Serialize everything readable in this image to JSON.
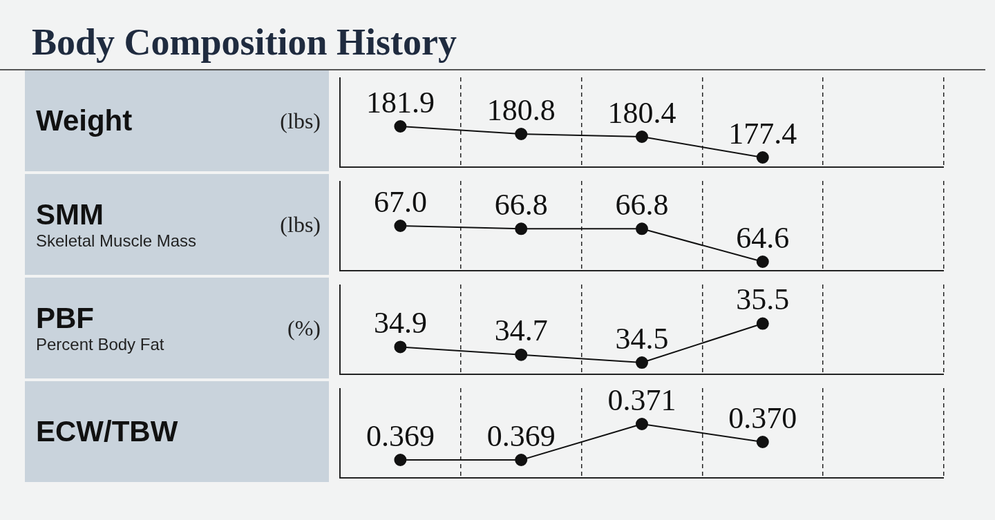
{
  "chart_data": [
    {
      "type": "line",
      "title": "Body Composition History",
      "ylabel": "Weight",
      "annotations": [
        "(lbs)"
      ],
      "categories": [
        null,
        null,
        null,
        null,
        null
      ],
      "ylim": [
        176,
        189
      ],
      "tick_labels": false,
      "grid": "x",
      "legend": false,
      "marker": "circle",
      "line_style": "solid",
      "series": [
        {
          "color": "#111111",
          "values": [
            181.9,
            180.8,
            180.4,
            177.4,
            null
          ],
          "value_labels": [
            "181.9",
            "180.8",
            "180.4",
            "177.4",
            null
          ]
        }
      ]
    },
    {
      "type": "line",
      "ylabel": "SMM",
      "annotations": [
        "Skeletal Muscle Mass",
        "(lbs)"
      ],
      "categories": [
        null,
        null,
        null,
        null,
        null
      ],
      "ylim": [
        64,
        70
      ],
      "tick_labels": false,
      "grid": "x",
      "legend": false,
      "marker": "circle",
      "line_style": "solid",
      "series": [
        {
          "color": "#111111",
          "values": [
            67.0,
            66.8,
            66.8,
            64.6,
            null
          ],
          "value_labels": [
            "67.0",
            "66.8",
            "66.8",
            "64.6",
            null
          ]
        }
      ]
    },
    {
      "type": "line",
      "ylabel": "PBF",
      "annotations": [
        "Percent Body Fat",
        "(%)"
      ],
      "categories": [
        null,
        null,
        null,
        null,
        null
      ],
      "ylim": [
        34.2,
        36.5
      ],
      "tick_labels": false,
      "grid": "x",
      "legend": false,
      "marker": "circle",
      "line_style": "solid",
      "series": [
        {
          "color": "#111111",
          "values": [
            34.9,
            34.7,
            34.5,
            35.5,
            null
          ],
          "value_labels": [
            "34.9",
            "34.7",
            "34.5",
            "35.5",
            null
          ]
        }
      ]
    },
    {
      "type": "line",
      "ylabel": "ECW/TBW",
      "categories": [
        null,
        null,
        null,
        null,
        null
      ],
      "ylim": [
        0.368,
        0.373
      ],
      "tick_labels": false,
      "grid": "x",
      "legend": false,
      "marker": "circle",
      "line_style": "solid",
      "series": [
        {
          "color": "#111111",
          "values": [
            0.369,
            0.369,
            0.371,
            0.37,
            null
          ],
          "value_labels": [
            "0.369",
            "0.369",
            "0.371",
            "0.370",
            null
          ]
        }
      ]
    }
  ]
}
